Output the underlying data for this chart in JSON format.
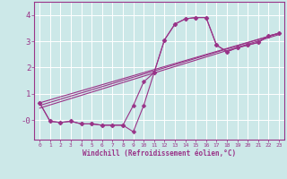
{
  "xlabel": "Windchill (Refroidissement éolien,°C)",
  "bg_color": "#cce8e8",
  "grid_color": "#ffffff",
  "line_color": "#993388",
  "xlim": [
    -0.5,
    23.5
  ],
  "ylim": [
    -0.75,
    4.5
  ],
  "xticks": [
    0,
    1,
    2,
    3,
    4,
    5,
    6,
    7,
    8,
    9,
    10,
    11,
    12,
    13,
    14,
    15,
    16,
    17,
    18,
    19,
    20,
    21,
    22,
    23
  ],
  "yticks": [
    0,
    1,
    2,
    3,
    4
  ],
  "ytick_labels": [
    "-0",
    "1",
    "2",
    "3",
    "4"
  ],
  "series": [
    {
      "x": [
        0,
        1,
        2,
        3,
        4,
        5,
        6,
        7,
        8,
        9,
        10,
        11,
        12,
        13,
        14,
        15,
        16,
        17,
        18,
        19,
        20,
        21,
        22,
        23
      ],
      "y": [
        0.65,
        -0.05,
        -0.1,
        -0.05,
        -0.15,
        -0.15,
        -0.2,
        -0.2,
        -0.2,
        0.55,
        1.45,
        1.8,
        3.05,
        3.65,
        3.85,
        3.9,
        3.9,
        2.85,
        2.6,
        2.75,
        2.85,
        2.95,
        3.2,
        3.3
      ],
      "marker": true
    },
    {
      "x": [
        0,
        1,
        2,
        3,
        4,
        5,
        6,
        7,
        8,
        9,
        10,
        11,
        12,
        13,
        14,
        15,
        16,
        17,
        18,
        19,
        20,
        21,
        22,
        23
      ],
      "y": [
        0.65,
        -0.05,
        -0.1,
        -0.05,
        -0.15,
        -0.15,
        -0.2,
        -0.2,
        -0.2,
        -0.45,
        0.55,
        1.8,
        3.05,
        3.65,
        3.85,
        3.9,
        3.9,
        2.85,
        2.6,
        2.75,
        2.85,
        2.95,
        3.2,
        3.3
      ],
      "marker": true
    },
    {
      "x": [
        0,
        23
      ],
      "y": [
        0.65,
        3.3
      ],
      "marker": false
    },
    {
      "x": [
        0,
        23
      ],
      "y": [
        0.55,
        3.3
      ],
      "marker": false
    },
    {
      "x": [
        0,
        23
      ],
      "y": [
        0.45,
        3.25
      ],
      "marker": false
    }
  ]
}
